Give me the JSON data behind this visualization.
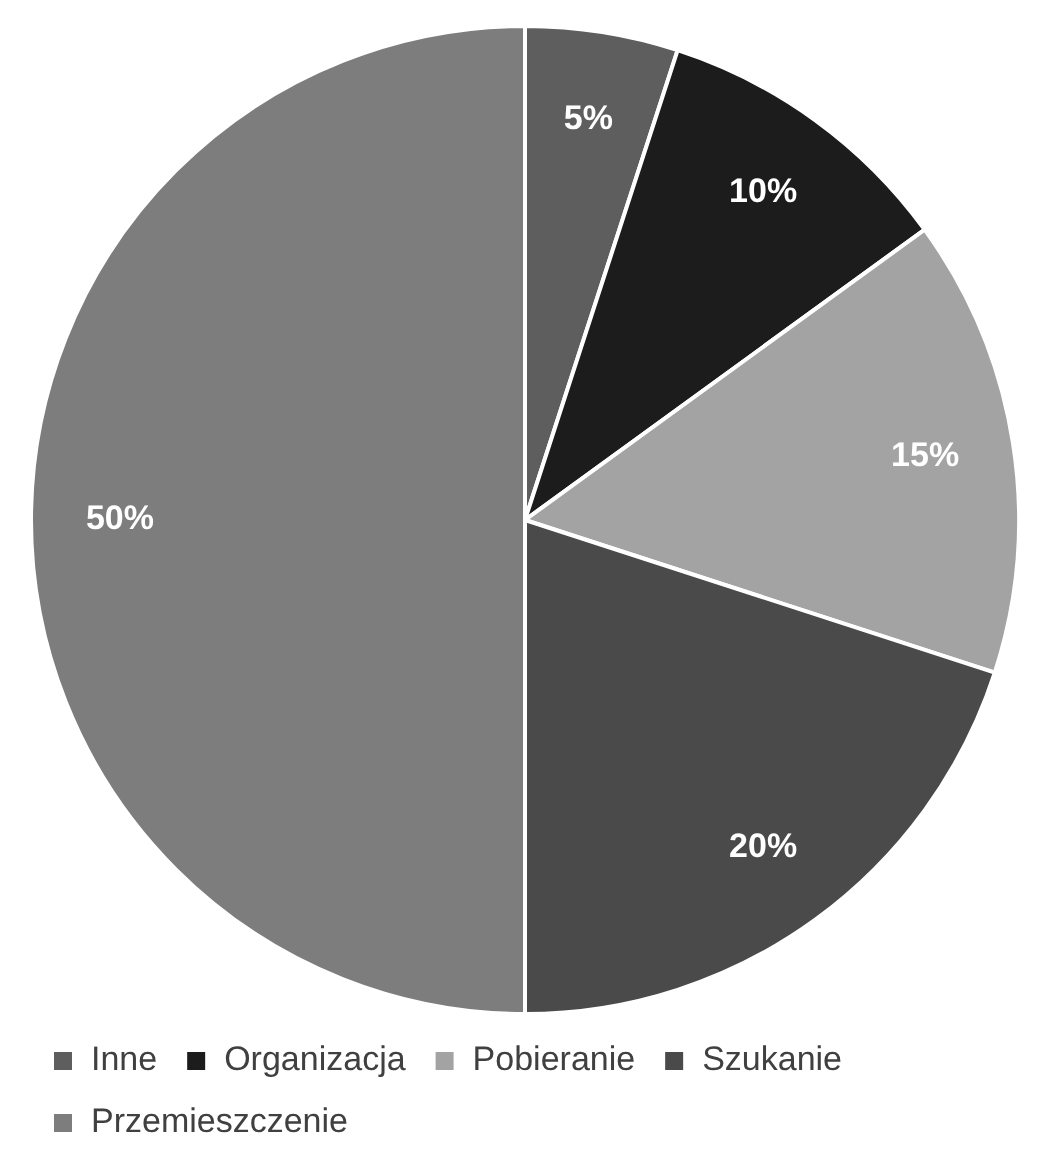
{
  "chart_data": {
    "type": "pie",
    "categories": [
      "Inne",
      "Organizacja",
      "Pobieranie",
      "Szukanie",
      "Przemieszczenie"
    ],
    "values": [
      5,
      10,
      15,
      20,
      50
    ],
    "colors": [
      "#5e5e5e",
      "#1c1c1c",
      "#a3a3a3",
      "#4a4a4a",
      "#7d7d7d"
    ],
    "value_labels": [
      "5%",
      "10%",
      "15%",
      "20%",
      "50%"
    ],
    "legend": "bottom"
  }
}
